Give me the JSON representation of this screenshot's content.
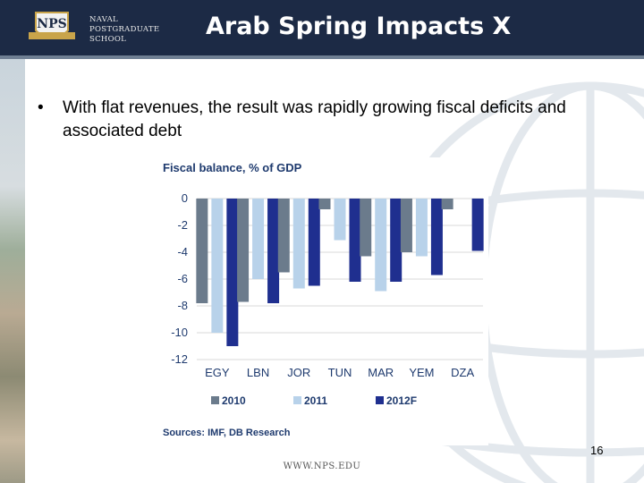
{
  "header": {
    "logo_lines": [
      "NAVAL",
      "POSTGRADUATE",
      "SCHOOL"
    ],
    "logo_badge_text": "NPS",
    "title": "Arab Spring Impacts X"
  },
  "bullet": {
    "marker": "•",
    "text": "With flat revenues, the result was rapidly growing fiscal deficits and associated debt"
  },
  "chart_data": {
    "type": "bar",
    "title": "Fiscal balance, % of GDP",
    "categories": [
      "EGY",
      "LBN",
      "JOR",
      "TUN",
      "MAR",
      "YEM",
      "DZA"
    ],
    "series": [
      {
        "name": "2010",
        "color": "#6b7b8c",
        "values": [
          -7.8,
          -7.7,
          -5.5,
          -0.8,
          -4.3,
          -4.0,
          -0.8
        ]
      },
      {
        "name": "2011",
        "color": "#b8d2ea",
        "values": [
          -10.0,
          -6.0,
          -6.7,
          -3.1,
          -6.9,
          -4.3,
          null
        ]
      },
      {
        "name": "2012F",
        "color": "#1f2f8f",
        "values": [
          -11.0,
          -7.8,
          -6.5,
          -6.2,
          -6.2,
          -5.7,
          -3.9
        ]
      }
    ],
    "yticks": [
      "0",
      "-2",
      "-4",
      "-6",
      "-8",
      "-10",
      "-12"
    ],
    "ylim": [
      -12,
      0
    ],
    "xlabel": "",
    "ylabel": "",
    "source": "Sources: IMF, DB Research"
  },
  "footer": {
    "page_number": "16",
    "url": "WWW.NPS.EDU"
  }
}
